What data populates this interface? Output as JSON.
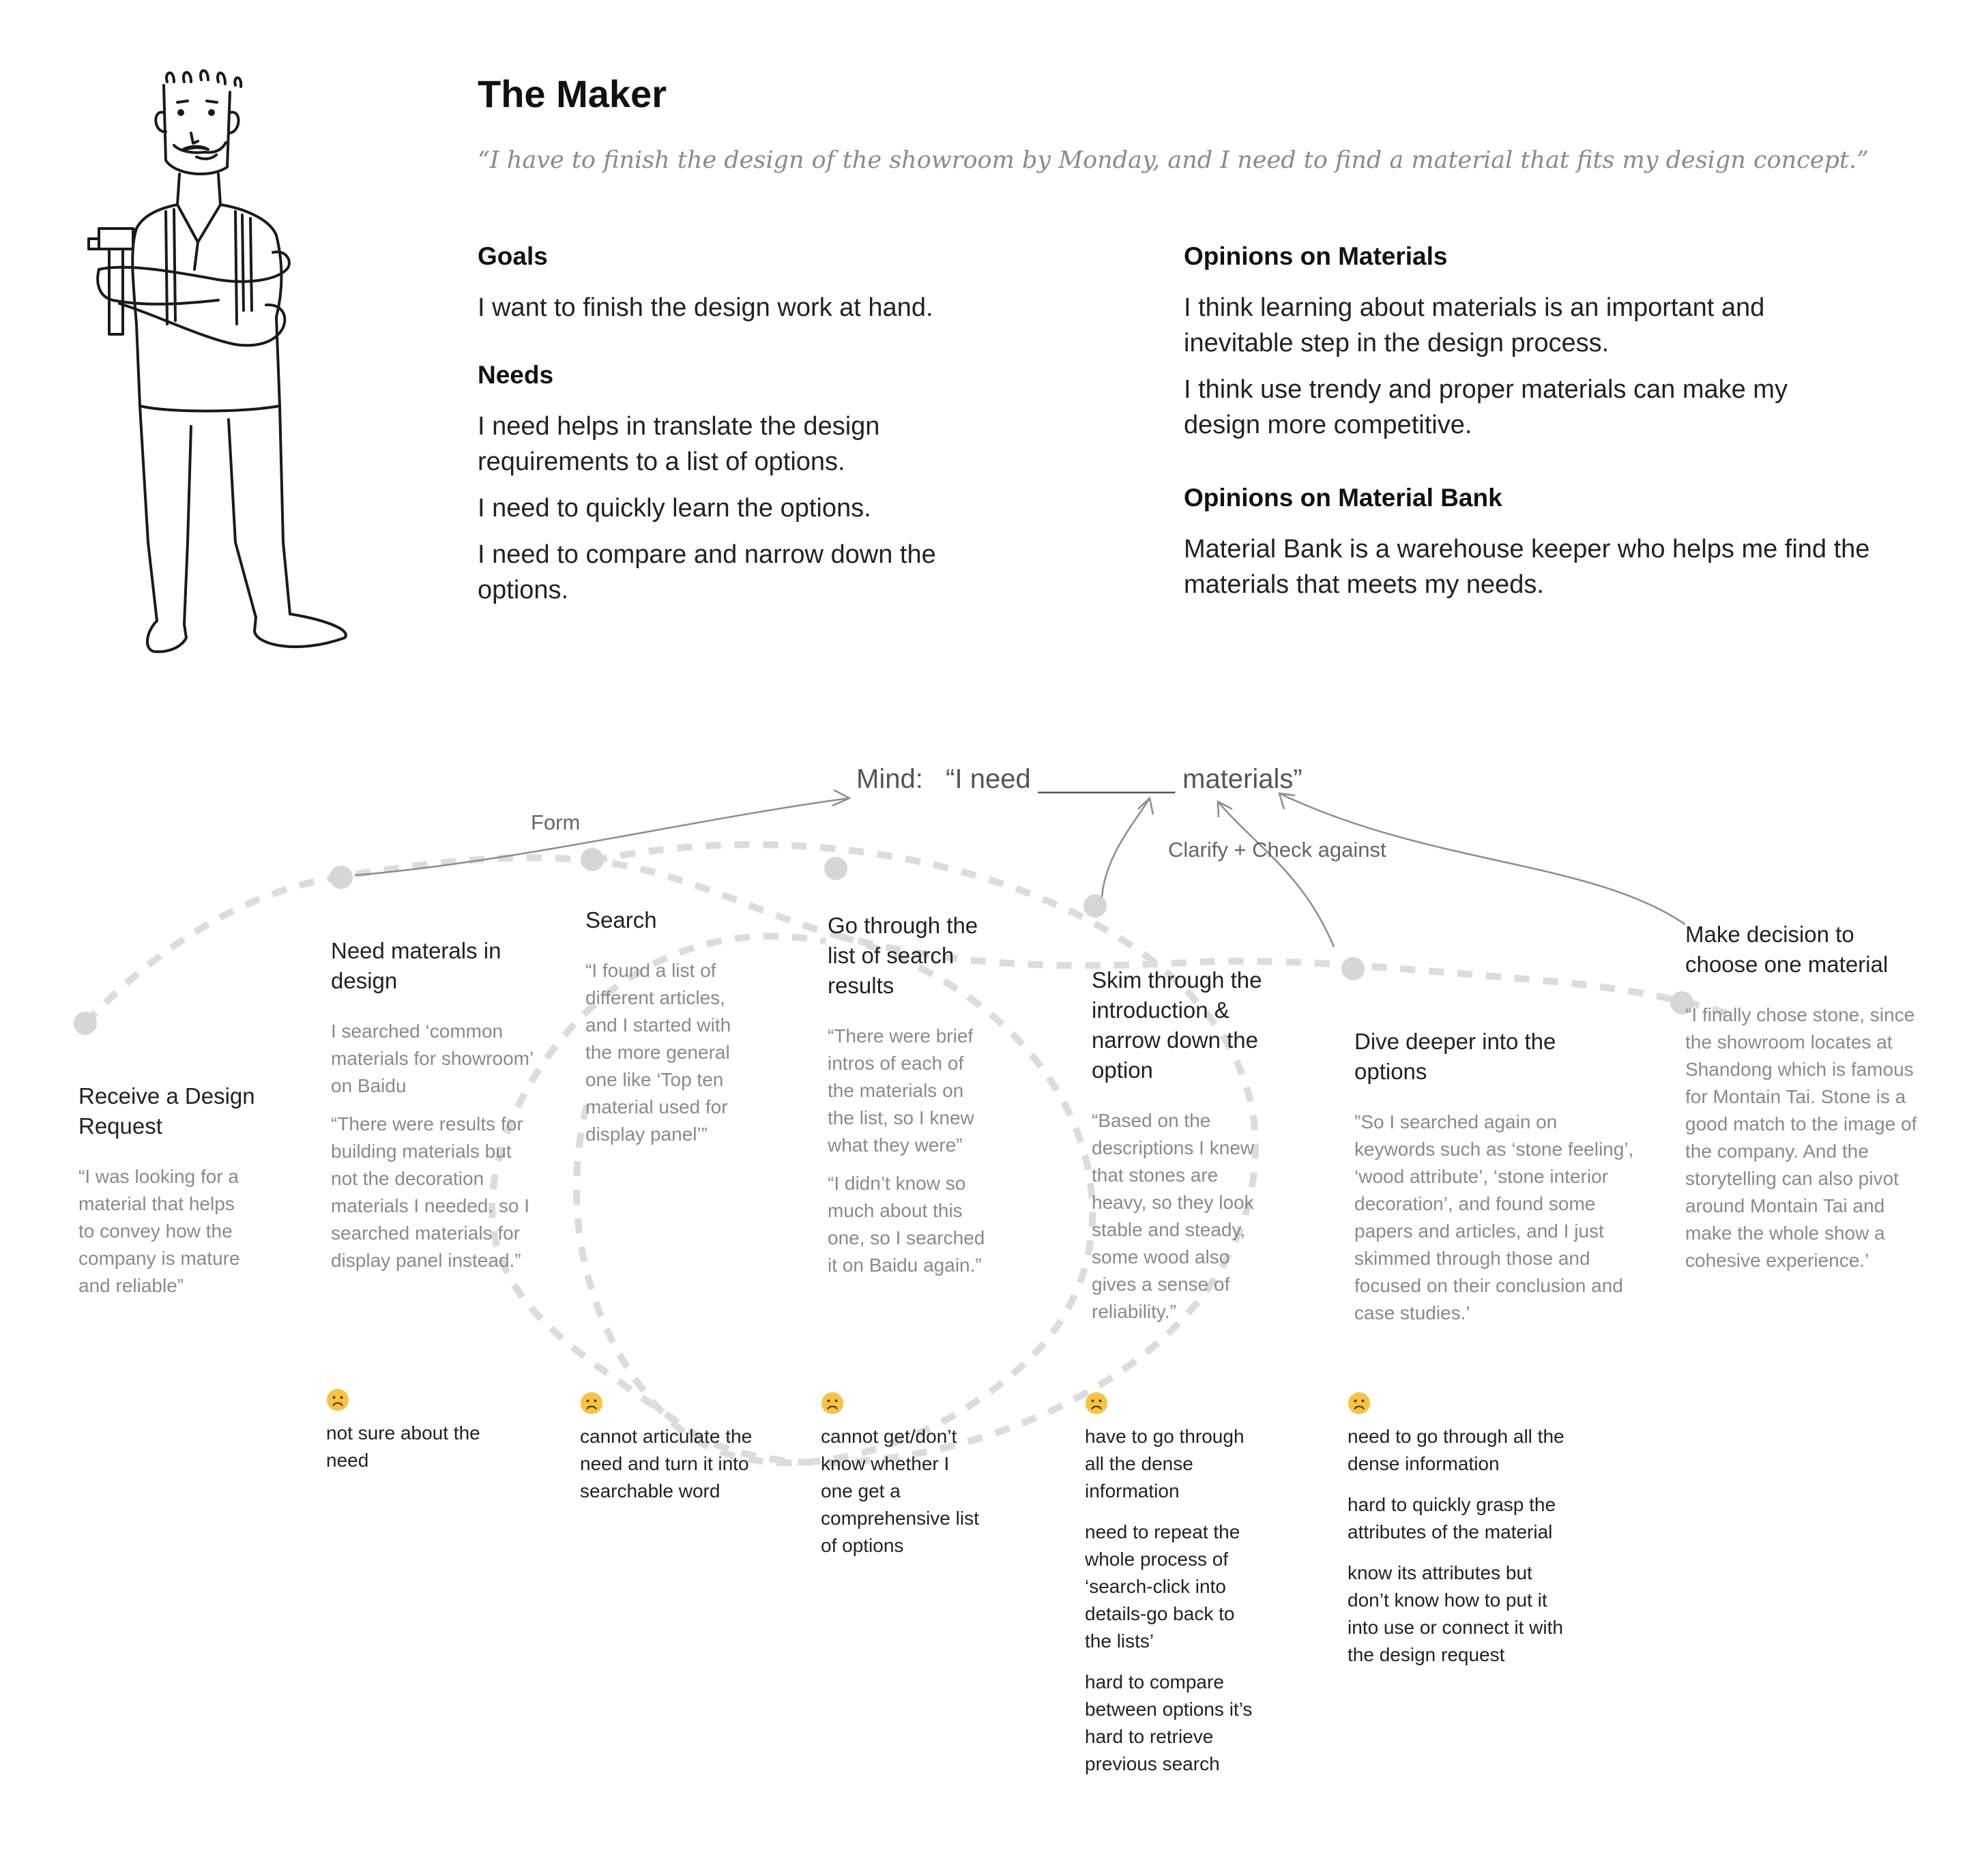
{
  "persona": {
    "title": "The Maker",
    "quote": "“I have to finish the design of the showroom by Monday, and I need to find a material that fits my design concept.”"
  },
  "goals": {
    "heading": "Goals",
    "items": [
      "I want to finish the design work at hand."
    ]
  },
  "needs": {
    "heading": "Needs",
    "items": [
      "I need helps in translate the design requirements to a list of options.",
      "I need to quickly learn the options.",
      "I need to compare and narrow down the options."
    ]
  },
  "opinions_materials": {
    "heading": "Opinions on Materials",
    "items": [
      "I think learning about materials is an important and inevitable step in the design process.",
      "I think use trendy and proper materials can make my design more competitive."
    ]
  },
  "opinions_bank": {
    "heading": "Opinions on Material Bank",
    "items": [
      "Material Bank is a warehouse keeper who helps me find the materials that meets my needs."
    ]
  },
  "mind": {
    "prefix": "Mind:",
    "text": "“I need _________ materials”"
  },
  "arrow_labels": {
    "form": "Form",
    "clarify": "Clarify + Check against"
  },
  "stages": [
    {
      "title": "Receive a Design Request",
      "quotes": [
        "“I was looking for a material that helps to convey how the company is mature and reliable”"
      ],
      "pains": []
    },
    {
      "title": "Need materals in design",
      "quotes": [
        "I searched ‘common materials for showroom’ on Baidu",
        "“There were results for building materials but not the decoration materials I needed. so I searched materials for display panel instead.”"
      ],
      "pains": [
        "not sure about the need"
      ]
    },
    {
      "title": "Search",
      "quotes": [
        "“I found a list of different articles, and I started with the more general one like ‘Top ten material used for display panel’”"
      ],
      "pains": [
        "cannot articulate the need and turn it into searchable word"
      ]
    },
    {
      "title": "Go through the list of search results",
      "quotes": [
        "“There were brief intros of each of the materials on the list, so I knew what they were”",
        "“I didn’t know so much about this one, so I searched it on Baidu again.”"
      ],
      "pains": [
        "cannot get/don’t know whether I one get a comprehensive list of options"
      ]
    },
    {
      "title": "Skim through the introduction & narrow down the option",
      "quotes": [
        "“Based on the descriptions I knew that stones are heavy, so they look stable and steady, some wood also gives a sense of reliability.”"
      ],
      "pains": [
        "have to go through all the dense information",
        "need to repeat the whole process of ‘search-click into details-go back to the lists’",
        "hard to compare between options it’s hard to retrieve previous search"
      ]
    },
    {
      "title": "Dive deeper into the options",
      "quotes": [
        "”So I searched again on keywords such as ‘stone feeling’, ‘wood attribute’, ‘stone interior decoration’, and found some papers and articles, and I just skimmed through those and focused on their conclusion and case studies.’"
      ],
      "pains": [
        "need to go through all the dense information",
        "hard to quickly grasp the attributes of the material",
        "know its attributes but don’t know how to put it into use or connect it with the design request"
      ]
    },
    {
      "title": "Make decision to choose one material",
      "quotes": [
        "“I finally chose stone, since the showroom locates at Shandong which is famous for Montain Tai. Stone is a good match to the image of the company. And the storytelling can also pivot around Montain Tai and make the whole show a cohesive experience.’"
      ],
      "pains": []
    }
  ],
  "colors": {
    "dot": "#d6d6d6",
    "dash": "#dcdcdc",
    "arrow": "#8c8c8c",
    "face": "#f6c343"
  }
}
